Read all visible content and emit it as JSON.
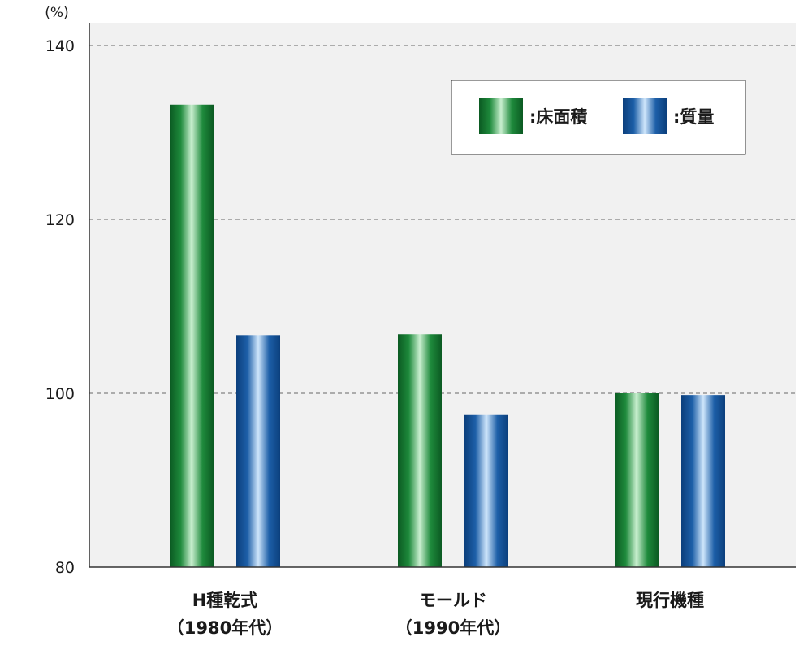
{
  "chart_data": {
    "type": "bar",
    "y_unit": "(%)",
    "ylim": [
      80,
      140
    ],
    "yticks": [
      80,
      100,
      120,
      140
    ],
    "grid": true,
    "legend_position": "top-right",
    "categories": [
      [
        "H種乾式",
        "（1980年代）"
      ],
      [
        "モールド",
        "（1990年代）"
      ],
      [
        "現行機種"
      ]
    ],
    "series": [
      {
        "name": ":床面積",
        "color": "#1e8a3c",
        "values": [
          133.2,
          106.8,
          100
        ]
      },
      {
        "name": ":質量",
        "color": "#1d5fa8",
        "values": [
          106.7,
          97.5,
          99.8
        ]
      }
    ]
  }
}
